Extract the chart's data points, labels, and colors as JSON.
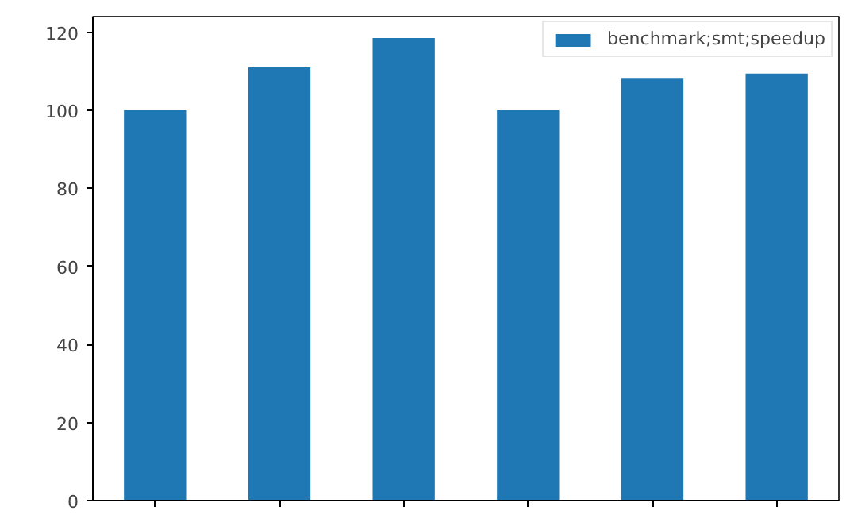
{
  "chart_data": {
    "type": "bar",
    "categories": [
      null,
      null,
      null,
      null,
      null,
      null
    ],
    "series": [
      {
        "name": "benchmark;smt;speedup",
        "color": "#1f77b4",
        "values": [
          100,
          111,
          118.5,
          100,
          108.3,
          109.4
        ]
      }
    ],
    "ylim": [
      0,
      124
    ],
    "yticks": [
      0,
      20,
      40,
      60,
      80,
      100,
      120
    ],
    "grid": false,
    "legend": "top right"
  }
}
